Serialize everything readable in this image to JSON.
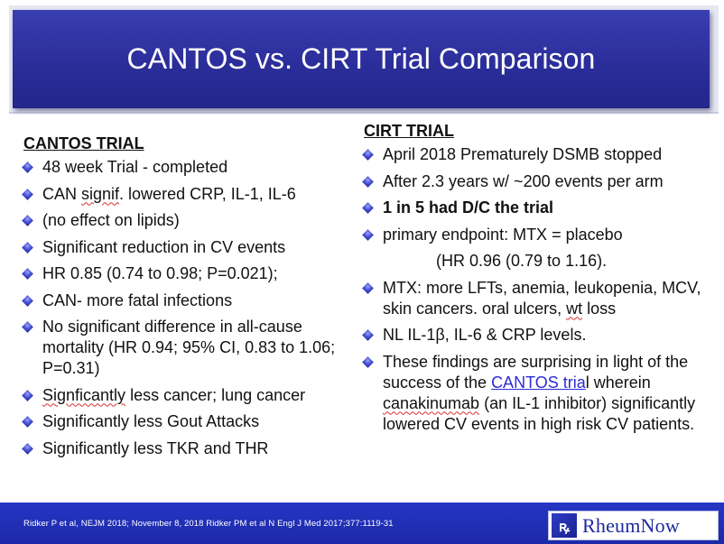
{
  "title": "CANTOS vs. CIRT Trial Comparison",
  "left": {
    "heading": "CANTOS TRIAL",
    "items": [
      {
        "t1": "48 week Trial - completed"
      },
      {
        "t1": "CAN ",
        "sq": "signif",
        "t2": ". lowered CRP, IL-1, IL-6"
      },
      {
        "t1": "(no effect on lipids)"
      },
      {
        "t1": "Significant reduction in CV events"
      },
      {
        "t1": "HR 0.85 (0.74 to 0.98; P=0.021);"
      },
      {
        "t1": "CAN- more fatal infections"
      },
      {
        "t1": "No significant difference in all-cause mortality (HR 0.94; 95% CI, 0.83 to 1.06; P=0.31)"
      },
      {
        "t1": "",
        "sq": "Signficantly",
        "t2": " less cancer; lung cancer"
      },
      {
        "t1": "Significantly less Gout Attacks"
      },
      {
        "t1": "Significantly less TKR and THR"
      }
    ]
  },
  "right": {
    "heading": "CIRT TRIAL",
    "items": [
      {
        "t1": "April 2018 Prematurely DSMB stopped"
      },
      {
        "t1": "After 2.3 years w/ ~200 events per arm"
      },
      {
        "t1": "1 in 5 had D/C the trial"
      },
      {
        "t1": "primary endpoint: MTX = placebo"
      },
      {
        "t1": "(HR 0.96 (0.79 to 1.16)."
      },
      {
        "t1": "MTX: more LFTs, anemia, leukopenia, MCV, skin cancers. oral ulcers, ",
        "sq": "wt",
        "t2": " loss"
      },
      {
        "t1": "NL IL-1β, IL-6 & CRP levels."
      },
      {
        "t1": "These findings are surprising in light of the success of the ",
        "link": "CANTOS tria",
        "t2": "l wherein ",
        "sq": "canakinumab",
        "t3": " (an IL-1 inhibitor) significantly lowered CV events in high risk CV patients."
      }
    ]
  },
  "footer": {
    "citation": "Ridker P et al, NEJM 2018; November 8, 2018 Ridker PM et al N Engl J Med 2017;377:1119-31",
    "logo_text": "RheumNow",
    "logo_mark": "ꝶ"
  },
  "colors": {
    "title_bg": "#2c2f9c",
    "bullet": "#4a55d8",
    "footer_bg": "#1f2db8",
    "link": "#2b2bd6"
  },
  "icons": {
    "bullet": "diamond-bullet-icon",
    "logo": "rheumnow-logo-icon"
  }
}
